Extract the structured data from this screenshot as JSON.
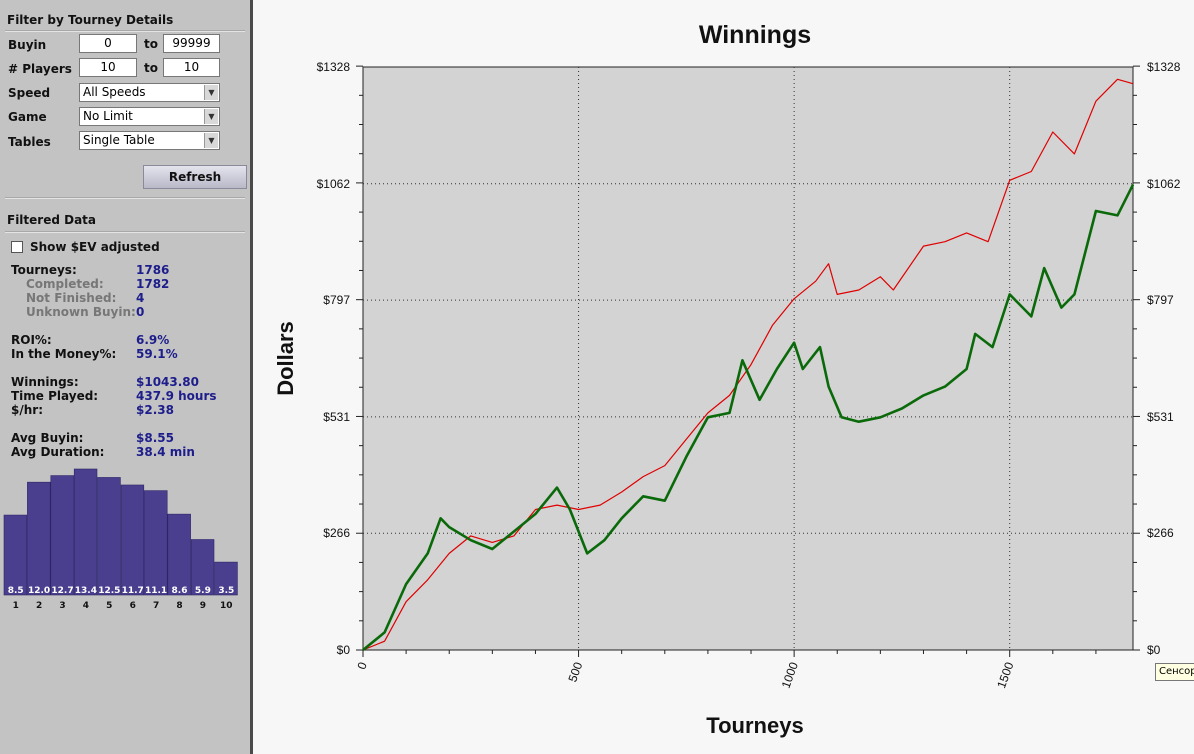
{
  "filter": {
    "title": "Filter by Tourney Details",
    "buyin": {
      "label": "Buyin",
      "from": "0",
      "to_label": "to",
      "to": "99999"
    },
    "players": {
      "label": "# Players",
      "from": "10",
      "to_label": "to",
      "to": "10"
    },
    "speed": {
      "label": "Speed",
      "value": "All Speeds"
    },
    "game": {
      "label": "Game",
      "value": "No Limit"
    },
    "tables": {
      "label": "Tables",
      "value": "Single Table"
    },
    "refresh_label": "Refresh"
  },
  "filtered": {
    "title": "Filtered Data",
    "show_ev_label": "Show $EV adjusted",
    "show_ev_checked": false,
    "stats": {
      "tourneys": {
        "label": "Tourneys:",
        "value": "1786"
      },
      "completed": {
        "label": "Completed:",
        "value": "1782"
      },
      "not_finished": {
        "label": "Not Finished:",
        "value": "4"
      },
      "unknown_buyin": {
        "label": "Unknown Buyin:",
        "value": "0"
      },
      "roi": {
        "label": "ROI%:",
        "value": "6.9%"
      },
      "itm": {
        "label": "In the Money%:",
        "value": "59.1%"
      },
      "winnings": {
        "label": "Winnings:",
        "value": "$1043.80"
      },
      "time_played": {
        "label": "Time Played:",
        "value": "437.9 hours"
      },
      "per_hour": {
        "label": "$/hr:",
        "value": "$2.38"
      },
      "avg_buyin": {
        "label": "Avg Buyin:",
        "value": "$8.55"
      },
      "avg_duration": {
        "label": "Avg Duration:",
        "value": "38.4 min"
      }
    }
  },
  "finish_histogram": {
    "type": "bar",
    "categories": [
      "1",
      "2",
      "3",
      "4",
      "5",
      "6",
      "7",
      "8",
      "9",
      "10"
    ],
    "values": [
      8.5,
      12.0,
      12.7,
      13.4,
      12.5,
      11.7,
      11.1,
      8.6,
      5.9,
      3.5
    ],
    "labels": [
      "8.5",
      "12.0",
      "12.7",
      "13.4",
      "12.5",
      "11.7",
      "11.1",
      "8.6",
      "5.9",
      "3.5"
    ],
    "bar_color": "#4a3f8f"
  },
  "chart_data": {
    "type": "line",
    "title": "Winnings",
    "xlabel": "Tourneys",
    "ylabel": "Dollars",
    "xlim": [
      0,
      1786
    ],
    "ylim": [
      0,
      1328
    ],
    "x_ticks": [
      0,
      500,
      1000,
      1500
    ],
    "x_tick_labels": [
      "0",
      "500",
      "1000",
      "1500"
    ],
    "y_ticks": [
      0,
      266,
      531,
      797,
      1062,
      1328
    ],
    "y_tick_labels": [
      "$0",
      "$266",
      "$531",
      "$797",
      "$1062",
      "$1328"
    ],
    "grid": true,
    "series": [
      {
        "color": "#e00000",
        "points": [
          [
            0,
            0
          ],
          [
            50,
            20
          ],
          [
            100,
            110
          ],
          [
            150,
            160
          ],
          [
            200,
            220
          ],
          [
            250,
            260
          ],
          [
            300,
            245
          ],
          [
            350,
            260
          ],
          [
            400,
            320
          ],
          [
            450,
            330
          ],
          [
            500,
            320
          ],
          [
            550,
            330
          ],
          [
            600,
            360
          ],
          [
            650,
            395
          ],
          [
            700,
            420
          ],
          [
            750,
            480
          ],
          [
            800,
            540
          ],
          [
            850,
            580
          ],
          [
            900,
            650
          ],
          [
            950,
            740
          ],
          [
            1000,
            800
          ],
          [
            1050,
            840
          ],
          [
            1080,
            880
          ],
          [
            1100,
            810
          ],
          [
            1150,
            820
          ],
          [
            1200,
            850
          ],
          [
            1230,
            820
          ],
          [
            1300,
            920
          ],
          [
            1350,
            930
          ],
          [
            1400,
            950
          ],
          [
            1450,
            930
          ],
          [
            1500,
            1070
          ],
          [
            1550,
            1090
          ],
          [
            1600,
            1180
          ],
          [
            1650,
            1130
          ],
          [
            1700,
            1250
          ],
          [
            1750,
            1300
          ],
          [
            1786,
            1290
          ]
        ]
      },
      {
        "color": "#0a6a0a",
        "points": [
          [
            0,
            0
          ],
          [
            50,
            40
          ],
          [
            100,
            150
          ],
          [
            150,
            220
          ],
          [
            180,
            300
          ],
          [
            200,
            280
          ],
          [
            250,
            250
          ],
          [
            300,
            230
          ],
          [
            350,
            270
          ],
          [
            400,
            310
          ],
          [
            450,
            370
          ],
          [
            480,
            320
          ],
          [
            520,
            220
          ],
          [
            560,
            250
          ],
          [
            600,
            300
          ],
          [
            650,
            350
          ],
          [
            700,
            340
          ],
          [
            750,
            440
          ],
          [
            800,
            530
          ],
          [
            850,
            540
          ],
          [
            880,
            660
          ],
          [
            920,
            570
          ],
          [
            960,
            640
          ],
          [
            1000,
            700
          ],
          [
            1020,
            640
          ],
          [
            1060,
            690
          ],
          [
            1080,
            600
          ],
          [
            1110,
            530
          ],
          [
            1150,
            520
          ],
          [
            1200,
            530
          ],
          [
            1250,
            550
          ],
          [
            1300,
            580
          ],
          [
            1350,
            600
          ],
          [
            1400,
            640
          ],
          [
            1420,
            720
          ],
          [
            1460,
            690
          ],
          [
            1500,
            810
          ],
          [
            1550,
            760
          ],
          [
            1580,
            870
          ],
          [
            1620,
            780
          ],
          [
            1650,
            810
          ],
          [
            1700,
            1000
          ],
          [
            1750,
            990
          ],
          [
            1786,
            1060
          ]
        ]
      }
    ]
  },
  "tooltip": "Сенсор"
}
